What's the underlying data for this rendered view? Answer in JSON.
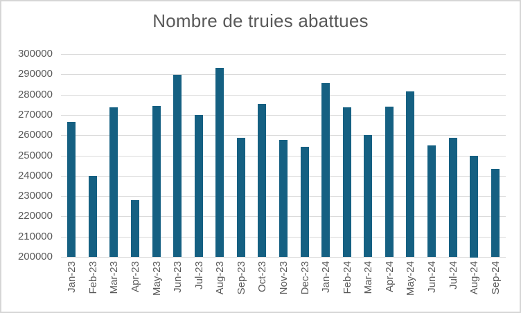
{
  "colors": {
    "bar": "#156082",
    "gridline": "#d9d9d9",
    "axis_line": "#d9d9d9",
    "axis_text": "#595959",
    "title_text": "#595959",
    "border": "#d6d6d6",
    "background": "#ffffff"
  },
  "chart_data": {
    "type": "bar",
    "title": "Nombre de truies abattues",
    "xlabel": "",
    "ylabel": "",
    "categories": [
      "Jan-23",
      "Feb-23",
      "Mar-23",
      "Apr-23",
      "May-23",
      "Jun-23",
      "Jul-23",
      "Aug-23",
      "Sep-23",
      "Oct-23",
      "Nov-23",
      "Dec-23",
      "Jan-24",
      "Feb-24",
      "Mar-24",
      "Apr-24",
      "May-24",
      "Jun-24",
      "Jul-24",
      "Aug-24",
      "Sep-24"
    ],
    "values": [
      266700,
      239800,
      273800,
      227900,
      274500,
      289600,
      269800,
      293300,
      258700,
      275400,
      257800,
      254100,
      285700,
      273700,
      260000,
      273900,
      281700,
      255000,
      258700,
      250000,
      243400
    ],
    "ylim": [
      200000,
      300000
    ],
    "ytick_step": 10000,
    "ytick_labels": [
      "200000",
      "210000",
      "220000",
      "230000",
      "240000",
      "250000",
      "260000",
      "270000",
      "280000",
      "290000",
      "300000"
    ],
    "grid": true,
    "legend": false
  }
}
